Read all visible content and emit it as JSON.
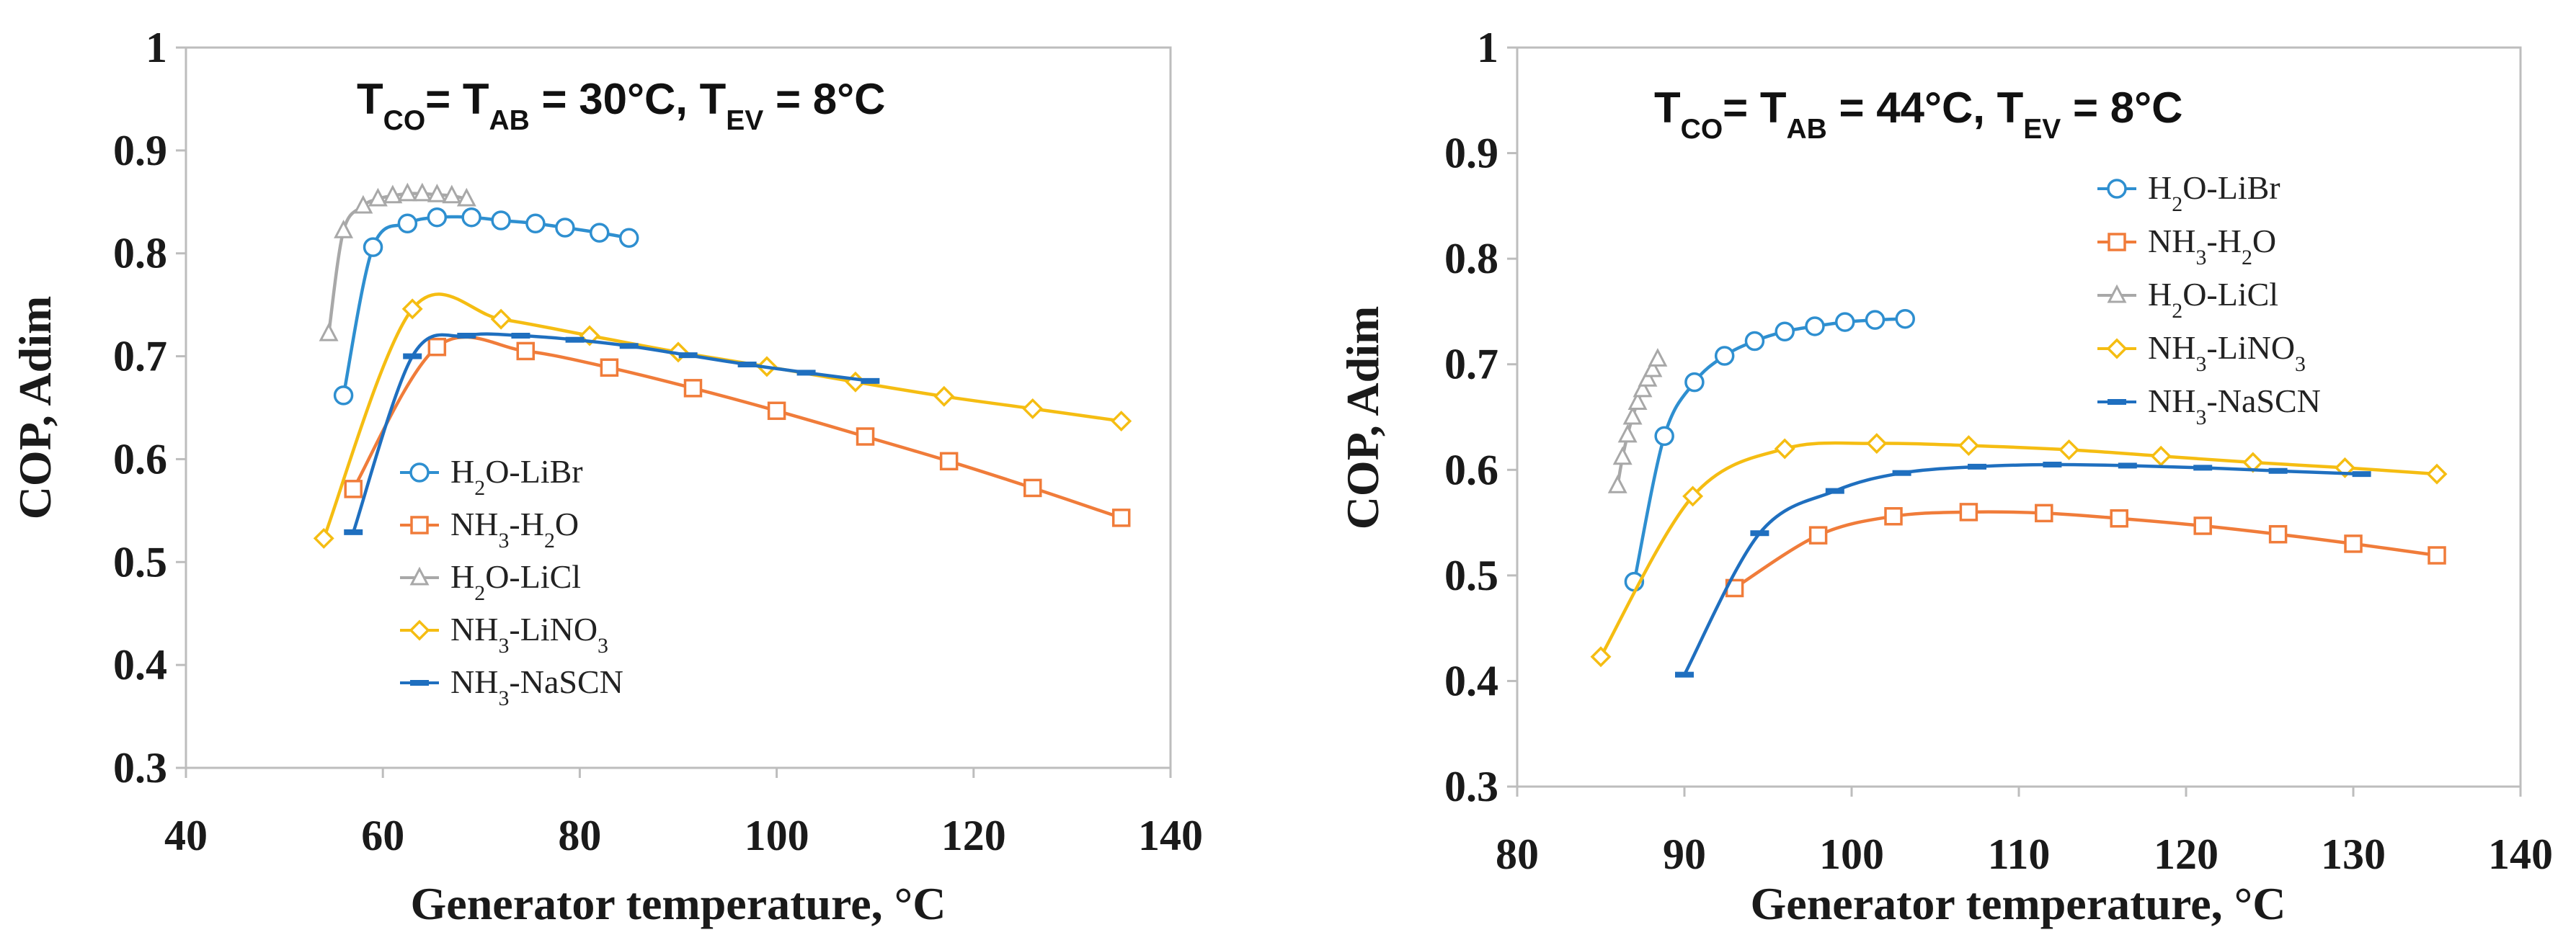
{
  "chart_data": [
    {
      "type": "line",
      "title_parts": {
        "t1": "T",
        "s1": "CO",
        "eq1": "= T",
        "s2": "AB",
        "eq2": " = 30°C, T",
        "s3": "EV",
        "eq3": " = 8°C"
      },
      "xlabel": "Generator temperature, °C",
      "ylabel": "COP, Adim",
      "xlim": [
        40,
        140
      ],
      "ylim": [
        0.3,
        1.0
      ],
      "xticks": [
        "40",
        "60",
        "80",
        "100",
        "120",
        "140"
      ],
      "yticks": [
        "0.3",
        "0.4",
        "0.5",
        "0.6",
        "0.7",
        "0.8",
        "0.9",
        "1"
      ],
      "legend_position": "lower-middle",
      "series": [
        {
          "name": "H2O-LiBr",
          "label_parts": {
            "a": "H",
            "sub": "2",
            "b": "O-LiBr"
          },
          "color": "#2e8fd0",
          "marker": "circle",
          "x": [
            56,
            59,
            62.5,
            65.5,
            69,
            72,
            75.5,
            78.5,
            82,
            85
          ],
          "y": [
            0.662,
            0.806,
            0.829,
            0.835,
            0.835,
            0.832,
            0.829,
            0.825,
            0.82,
            0.815
          ]
        },
        {
          "name": "NH3-H2O",
          "label_parts": {
            "a": "NH",
            "sub": "3",
            "b": "-H",
            "sub2": "2",
            "c": "O"
          },
          "color": "#f07c3a",
          "marker": "square",
          "x": [
            57,
            65.5,
            74.5,
            83,
            91.5,
            100,
            109,
            117.5,
            126,
            135
          ],
          "y": [
            0.571,
            0.709,
            0.705,
            0.689,
            0.669,
            0.647,
            0.622,
            0.598,
            0.572,
            0.543
          ]
        },
        {
          "name": "H2O-LiCl",
          "label_parts": {
            "a": "H",
            "sub": "2",
            "b": "O-LiCl"
          },
          "color": "#a8a8a8",
          "marker": "triangle",
          "x": [
            54.5,
            56,
            58,
            59.5,
            61,
            62.5,
            64,
            65.5,
            67,
            68.5
          ],
          "y": [
            0.722,
            0.822,
            0.846,
            0.853,
            0.856,
            0.858,
            0.858,
            0.857,
            0.856,
            0.853
          ]
        },
        {
          "name": "NH3-LiNO3",
          "label_parts": {
            "a": "NH",
            "sub": "3",
            "b": "-LiNO",
            "sub2": "3"
          },
          "color": "#f5bd12",
          "marker": "diamond",
          "x": [
            54,
            63,
            72,
            81,
            90,
            99,
            108,
            117,
            126,
            135
          ],
          "y": [
            0.523,
            0.746,
            0.736,
            0.72,
            0.704,
            0.69,
            0.675,
            0.661,
            0.649,
            0.637
          ]
        },
        {
          "name": "NH3-NaSCN",
          "label_parts": {
            "a": "NH",
            "sub": "3",
            "b": "-NaSCN"
          },
          "color": "#1f6fbf",
          "marker": "dash",
          "x": [
            57,
            63,
            68.5,
            74,
            79.5,
            85,
            91,
            97,
            103,
            109.5
          ],
          "y": [
            0.529,
            0.7,
            0.72,
            0.72,
            0.716,
            0.71,
            0.701,
            0.692,
            0.684,
            0.676
          ]
        }
      ]
    },
    {
      "type": "line",
      "title_parts": {
        "t1": "T",
        "s1": "CO",
        "eq1": "= T",
        "s2": "AB",
        "eq2": " = 44°C, T",
        "s3": "EV",
        "eq3": " = 8°C"
      },
      "xlabel": "Generator temperature, °C",
      "ylabel": "COP, Adim",
      "xlim": [
        80,
        140
      ],
      "ylim": [
        0.3,
        1.0
      ],
      "xticks": [
        "80",
        "90",
        "100",
        "110",
        "120",
        "130",
        "140"
      ],
      "yticks": [
        "0.3",
        "0.4",
        "0.5",
        "0.6",
        "0.7",
        "0.8",
        "0.9",
        "1"
      ],
      "legend_position": "upper-middle",
      "series": [
        {
          "name": "H2O-LiBr",
          "label_parts": {
            "a": "H",
            "sub": "2",
            "b": "O-LiBr"
          },
          "color": "#2e8fd0",
          "marker": "circle",
          "x": [
            87,
            88.8,
            90.6,
            92.4,
            94.2,
            96,
            97.8,
            99.6,
            101.4,
            103.2
          ],
          "y": [
            0.494,
            0.632,
            0.683,
            0.708,
            0.722,
            0.731,
            0.736,
            0.74,
            0.742,
            0.743
          ]
        },
        {
          "name": "NH3-H2O",
          "label_parts": {
            "a": "NH",
            "sub": "3",
            "b": "-H",
            "sub2": "2",
            "c": "O"
          },
          "color": "#f07c3a",
          "marker": "square",
          "x": [
            93,
            98,
            102.5,
            107,
            111.5,
            116,
            121,
            125.5,
            130,
            135
          ],
          "y": [
            0.488,
            0.538,
            0.556,
            0.56,
            0.559,
            0.554,
            0.547,
            0.539,
            0.53,
            0.519
          ]
        },
        {
          "name": "H2O-LiCl",
          "label_parts": {
            "a": "H",
            "sub": "2",
            "b": "O-LiCl"
          },
          "color": "#a8a8a8",
          "marker": "triangle",
          "x": [
            86,
            86.3,
            86.6,
            86.9,
            87.2,
            87.5,
            87.8,
            88.1,
            88.4
          ],
          "y": [
            0.585,
            0.612,
            0.633,
            0.65,
            0.664,
            0.676,
            0.686,
            0.695,
            0.705
          ]
        },
        {
          "name": "NH3-LiNO3",
          "label_parts": {
            "a": "NH",
            "sub": "3",
            "b": "-LiNO",
            "sub2": "3"
          },
          "color": "#f5bd12",
          "marker": "diamond",
          "x": [
            85,
            90.5,
            96,
            101.5,
            107,
            113,
            118.5,
            124,
            129.5,
            135
          ],
          "y": [
            0.423,
            0.575,
            0.62,
            0.625,
            0.623,
            0.619,
            0.613,
            0.607,
            0.602,
            0.596
          ]
        },
        {
          "name": "NH3-NaSCN",
          "label_parts": {
            "a": "NH",
            "sub": "3",
            "b": "-NaSCN"
          },
          "color": "#1f6fbf",
          "marker": "dash",
          "x": [
            90,
            94.5,
            99,
            103,
            107.5,
            112,
            116.5,
            121,
            125.5,
            130.5
          ],
          "y": [
            0.406,
            0.54,
            0.58,
            0.597,
            0.603,
            0.605,
            0.604,
            0.602,
            0.599,
            0.596
          ]
        }
      ]
    }
  ]
}
